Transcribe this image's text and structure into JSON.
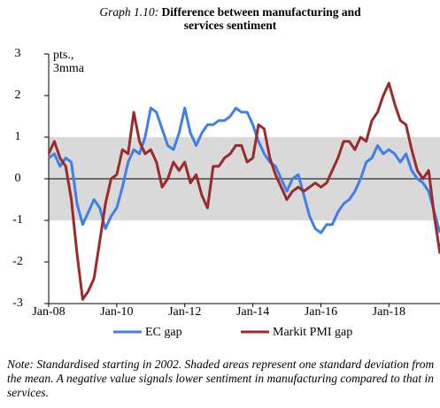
{
  "chart_data": {
    "type": "line",
    "title_prefix": "Graph 1.10:",
    "title": "Difference between manufacturing and services sentiment",
    "y_label": "pts., 3mma",
    "note": "Note: Standardised starting in 2002. Shaded areas represent one standard deviation from the mean. A negative value signals lower sentiment in manufacturing compared to that in services.",
    "categories": [
      "Jan-08",
      null,
      null,
      null,
      null,
      null,
      null,
      null,
      null,
      null,
      null,
      null,
      "Jan-10",
      null,
      null,
      null,
      null,
      null,
      null,
      null,
      null,
      null,
      null,
      null,
      "Jan-12",
      null,
      null,
      null,
      null,
      null,
      null,
      null,
      null,
      null,
      null,
      null,
      "Jan-14",
      null,
      null,
      null,
      null,
      null,
      null,
      null,
      null,
      null,
      null,
      null,
      "Jan-16",
      null,
      null,
      null,
      null,
      null,
      null,
      null,
      null,
      null,
      null,
      null,
      "Jan-18",
      null,
      null,
      null,
      null,
      null,
      null,
      null,
      null,
      null
    ],
    "series": [
      {
        "name": "EC gap",
        "color": "#3f7fe8",
        "values": [
          0.5,
          0.6,
          0.3,
          0.5,
          0.4,
          -0.6,
          -1.1,
          -0.8,
          -0.5,
          -0.7,
          -1.2,
          -0.9,
          -0.7,
          -0.2,
          0.4,
          0.7,
          0.6,
          1.0,
          1.7,
          1.6,
          1.2,
          0.8,
          0.7,
          1.1,
          1.7,
          1.1,
          0.8,
          1.1,
          1.3,
          1.3,
          1.4,
          1.4,
          1.5,
          1.7,
          1.6,
          1.6,
          1.3,
          0.9,
          0.6,
          0.4,
          0.3,
          0.0,
          -0.3,
          0.0,
          0.1,
          -0.4,
          -0.9,
          -1.2,
          -1.3,
          -1.1,
          -1.1,
          -0.8,
          -0.6,
          -0.5,
          -0.3,
          0.0,
          0.4,
          0.5,
          0.8,
          0.6,
          0.7,
          0.6,
          0.4,
          0.6,
          0.2,
          0.0,
          -0.1,
          -0.3,
          -0.8,
          -1.3
        ]
      },
      {
        "name": "Markit PMI gap",
        "color": "#9b2a2a",
        "values": [
          0.6,
          0.9,
          0.5,
          0.3,
          -0.5,
          -1.8,
          -2.9,
          -2.7,
          -2.4,
          -1.5,
          -0.6,
          0.0,
          0.1,
          0.7,
          0.6,
          1.6,
          0.9,
          0.6,
          0.7,
          0.4,
          -0.2,
          0.0,
          0.4,
          0.2,
          0.4,
          -0.1,
          0.1,
          -0.4,
          -0.7,
          0.3,
          0.3,
          0.5,
          0.6,
          0.8,
          0.8,
          0.4,
          0.5,
          1.3,
          1.2,
          0.5,
          0.1,
          -0.2,
          -0.5,
          -0.3,
          -0.2,
          -0.3,
          -0.2,
          -0.1,
          -0.2,
          -0.1,
          0.2,
          0.5,
          0.9,
          0.9,
          0.7,
          1.0,
          0.9,
          1.4,
          1.6,
          2.0,
          2.3,
          1.8,
          1.4,
          1.3,
          0.7,
          0.2,
          0.0,
          0.2,
          -0.9,
          -1.8
        ]
      }
    ],
    "ylim": [
      -3,
      3
    ],
    "yticks": [
      -3,
      -2,
      -1,
      0,
      1,
      2,
      3
    ],
    "shaded_range": [
      -1,
      1
    ],
    "shade_color": "#d9d9d9"
  }
}
